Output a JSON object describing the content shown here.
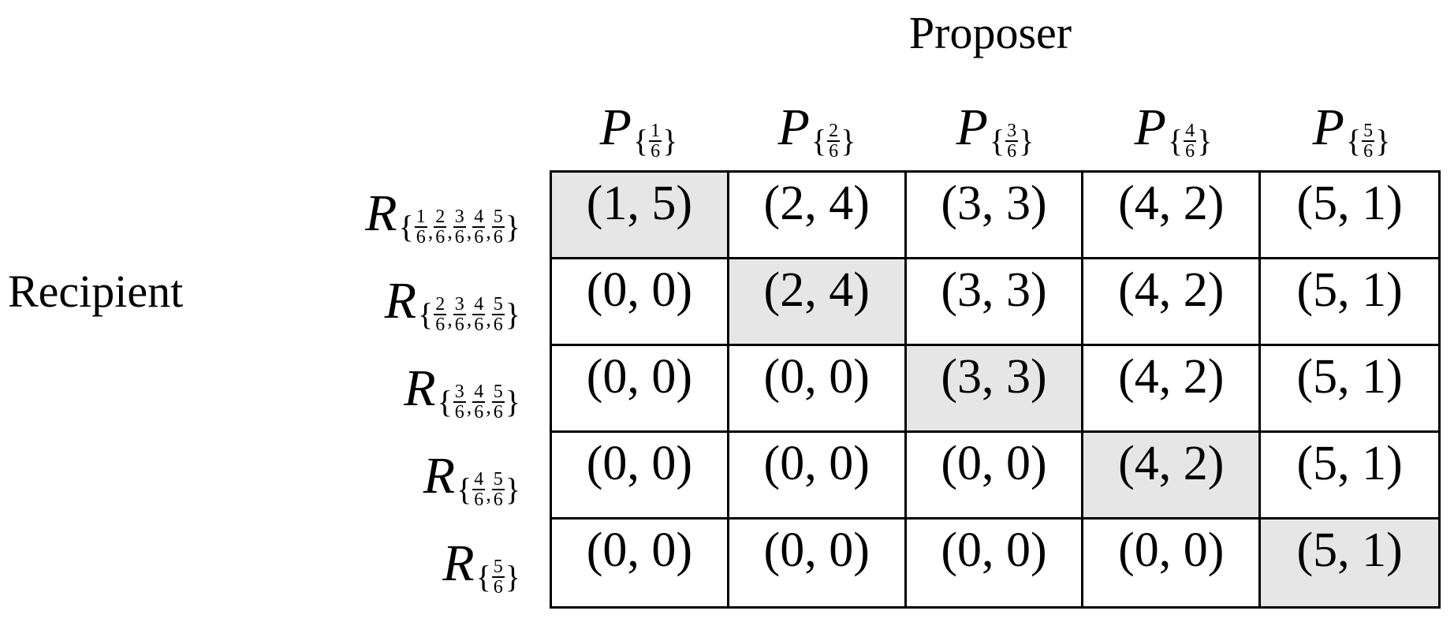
{
  "title": "Proposer",
  "row_title": "Recipient",
  "brace_open": "{",
  "brace_close": "}",
  "separator": ",",
  "highlight_color": "#e6e6e6",
  "columns": [
    {
      "symbol": "P",
      "fractions": [
        {
          "num": "1",
          "den": "6"
        }
      ]
    },
    {
      "symbol": "P",
      "fractions": [
        {
          "num": "2",
          "den": "6"
        }
      ]
    },
    {
      "symbol": "P",
      "fractions": [
        {
          "num": "3",
          "den": "6"
        }
      ]
    },
    {
      "symbol": "P",
      "fractions": [
        {
          "num": "4",
          "den": "6"
        }
      ]
    },
    {
      "symbol": "P",
      "fractions": [
        {
          "num": "5",
          "den": "6"
        }
      ]
    }
  ],
  "rows": [
    {
      "symbol": "R",
      "fractions": [
        {
          "num": "1",
          "den": "6"
        },
        {
          "num": "2",
          "den": "6"
        },
        {
          "num": "3",
          "den": "6"
        },
        {
          "num": "4",
          "den": "6"
        },
        {
          "num": "5",
          "den": "6"
        }
      ],
      "highlight": 0,
      "cells": [
        "(1, 5)",
        "(2, 4)",
        "(3, 3)",
        "(4, 2)",
        "(5, 1)"
      ]
    },
    {
      "symbol": "R",
      "fractions": [
        {
          "num": "2",
          "den": "6"
        },
        {
          "num": "3",
          "den": "6"
        },
        {
          "num": "4",
          "den": "6"
        },
        {
          "num": "5",
          "den": "6"
        }
      ],
      "highlight": 1,
      "cells": [
        "(0, 0)",
        "(2, 4)",
        "(3, 3)",
        "(4, 2)",
        "(5, 1)"
      ]
    },
    {
      "symbol": "R",
      "fractions": [
        {
          "num": "3",
          "den": "6"
        },
        {
          "num": "4",
          "den": "6"
        },
        {
          "num": "5",
          "den": "6"
        }
      ],
      "highlight": 2,
      "cells": [
        "(0, 0)",
        "(0, 0)",
        "(3, 3)",
        "(4, 2)",
        "(5, 1)"
      ]
    },
    {
      "symbol": "R",
      "fractions": [
        {
          "num": "4",
          "den": "6"
        },
        {
          "num": "5",
          "den": "6"
        }
      ],
      "highlight": 3,
      "cells": [
        "(0, 0)",
        "(0, 0)",
        "(0, 0)",
        "(4, 2)",
        "(5, 1)"
      ]
    },
    {
      "symbol": "R",
      "fractions": [
        {
          "num": "5",
          "den": "6"
        }
      ],
      "highlight": 4,
      "cells": [
        "(0, 0)",
        "(0, 0)",
        "(0, 0)",
        "(0, 0)",
        "(5, 1)"
      ]
    }
  ]
}
